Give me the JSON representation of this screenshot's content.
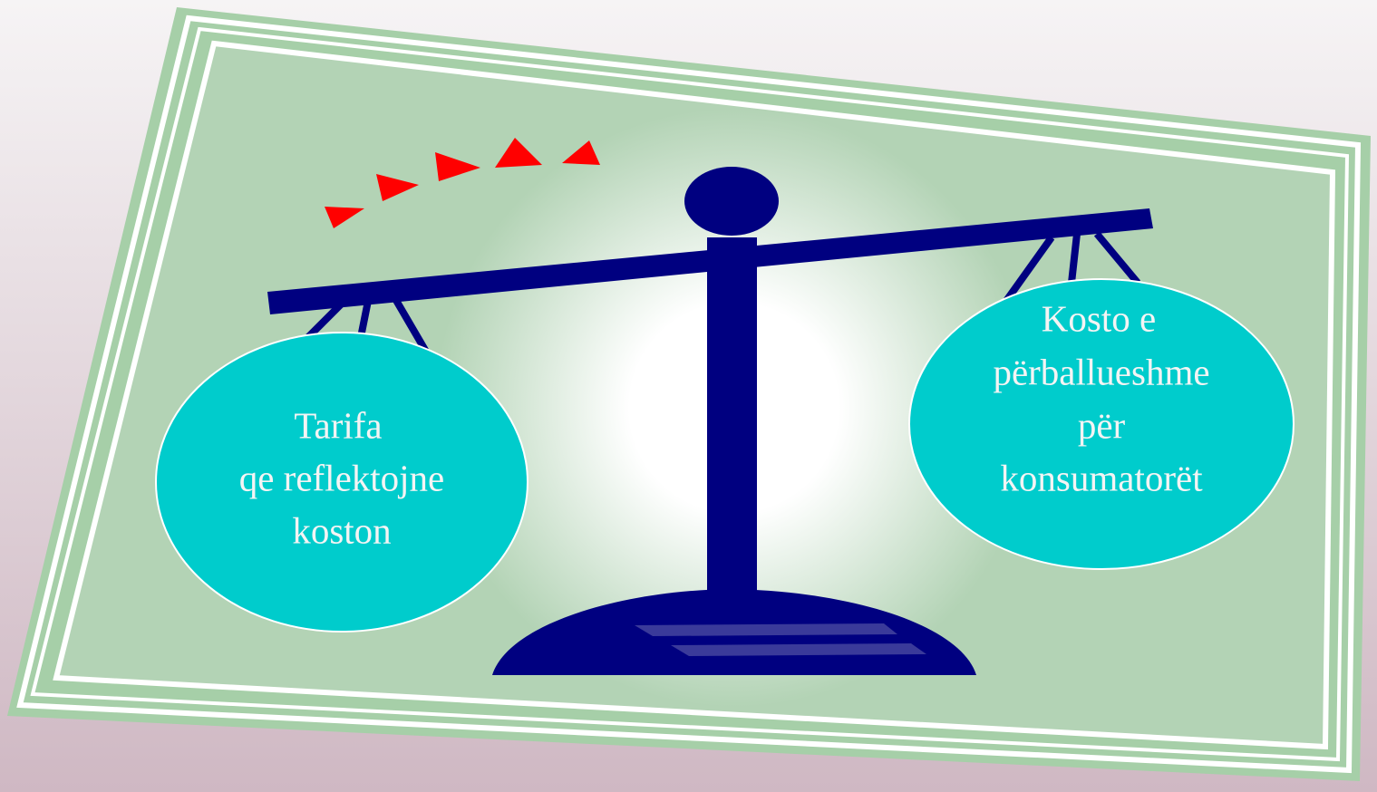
{
  "left_pan": {
    "lines": [
      "Tarifa",
      "qe reflektojne",
      "koston"
    ]
  },
  "right_pan": {
    "lines": [
      "Kosto e",
      "përballueshme",
      "për",
      "konsumatorët"
    ]
  }
}
